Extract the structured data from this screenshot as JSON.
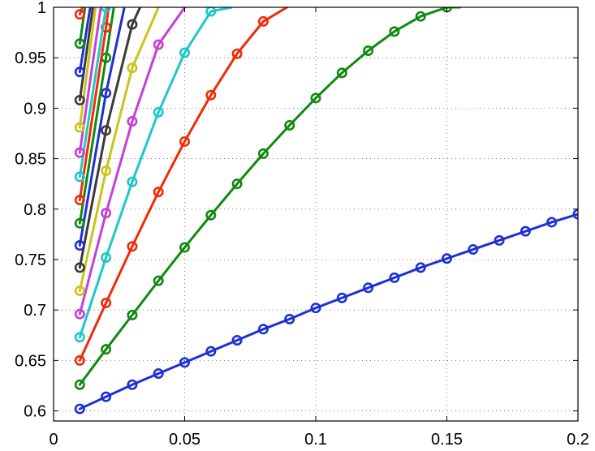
{
  "chart_data": {
    "type": "line",
    "title": "",
    "xlabel": "",
    "ylabel": "",
    "xlim": [
      0,
      0.2
    ],
    "ylim": [
      0.59,
      1.0
    ],
    "grid": true,
    "marker": "circle",
    "x_ticks": [
      "0",
      "0.05",
      "0.1",
      "0.15",
      "0.2"
    ],
    "y_ticks": [
      "0.6",
      "0.65",
      "0.7",
      "0.75",
      "0.8",
      "0.85",
      "0.9",
      "0.95",
      "1"
    ],
    "series": [
      {
        "color": "#1f2fd6",
        "points": [
          [
            0.01,
            0.602
          ],
          [
            0.02,
            0.614
          ],
          [
            0.03,
            0.626
          ],
          [
            0.04,
            0.637
          ],
          [
            0.05,
            0.648
          ],
          [
            0.06,
            0.659
          ],
          [
            0.07,
            0.67
          ],
          [
            0.08,
            0.681
          ],
          [
            0.09,
            0.691
          ],
          [
            0.1,
            0.702
          ],
          [
            0.11,
            0.712
          ],
          [
            0.12,
            0.722
          ],
          [
            0.13,
            0.732
          ],
          [
            0.14,
            0.742
          ],
          [
            0.15,
            0.751
          ],
          [
            0.16,
            0.76
          ],
          [
            0.17,
            0.769
          ],
          [
            0.18,
            0.778
          ],
          [
            0.19,
            0.787
          ],
          [
            0.2,
            0.795
          ]
        ]
      },
      {
        "color": "#0e8a0e",
        "points": [
          [
            0.01,
            0.626
          ],
          [
            0.02,
            0.661
          ],
          [
            0.03,
            0.695
          ],
          [
            0.04,
            0.729
          ],
          [
            0.05,
            0.762
          ],
          [
            0.06,
            0.794
          ],
          [
            0.07,
            0.825
          ],
          [
            0.08,
            0.855
          ],
          [
            0.09,
            0.883
          ],
          [
            0.1,
            0.91
          ],
          [
            0.11,
            0.935
          ],
          [
            0.12,
            0.957
          ],
          [
            0.13,
            0.976
          ],
          [
            0.14,
            0.991
          ],
          [
            0.15,
            1.0
          ],
          [
            0.155,
            1.0
          ]
        ]
      },
      {
        "color": "#f02b06",
        "points": [
          [
            0.01,
            0.65
          ],
          [
            0.02,
            0.707
          ],
          [
            0.03,
            0.763
          ],
          [
            0.04,
            0.817
          ],
          [
            0.05,
            0.867
          ],
          [
            0.06,
            0.913
          ],
          [
            0.07,
            0.954
          ],
          [
            0.08,
            0.986
          ],
          [
            0.089,
            1.0
          ]
        ]
      },
      {
        "color": "#1fc7c7",
        "points": [
          [
            0.01,
            0.673
          ],
          [
            0.02,
            0.752
          ],
          [
            0.03,
            0.827
          ],
          [
            0.04,
            0.896
          ],
          [
            0.05,
            0.955
          ],
          [
            0.06,
            0.996
          ],
          [
            0.068,
            1.0
          ]
        ]
      },
      {
        "color": "#c63fd6",
        "points": [
          [
            0.01,
            0.696
          ],
          [
            0.02,
            0.796
          ],
          [
            0.03,
            0.887
          ],
          [
            0.04,
            0.963
          ],
          [
            0.05,
            1.0
          ]
        ]
      },
      {
        "color": "#c9c41c",
        "points": [
          [
            0.01,
            0.719
          ],
          [
            0.02,
            0.838
          ],
          [
            0.03,
            0.94
          ],
          [
            0.04,
            1.0
          ]
        ]
      },
      {
        "color": "#3a3a3a",
        "points": [
          [
            0.01,
            0.742
          ],
          [
            0.02,
            0.878
          ],
          [
            0.03,
            0.983
          ],
          [
            0.033,
            1.0
          ]
        ]
      },
      {
        "color": "#1f2fd6",
        "points": [
          [
            0.01,
            0.764
          ],
          [
            0.02,
            0.915
          ],
          [
            0.027,
            1.0
          ]
        ]
      },
      {
        "color": "#0e8a0e",
        "points": [
          [
            0.01,
            0.786
          ],
          [
            0.02,
            0.95
          ],
          [
            0.023,
            1.0
          ]
        ]
      },
      {
        "color": "#f02b06",
        "points": [
          [
            0.01,
            0.809
          ],
          [
            0.02,
            0.98
          ],
          [
            0.021,
            1.0
          ]
        ]
      },
      {
        "color": "#1fc7c7",
        "points": [
          [
            0.01,
            0.832
          ],
          [
            0.02,
            1.0
          ]
        ]
      },
      {
        "color": "#c63fd6",
        "points": [
          [
            0.01,
            0.856
          ],
          [
            0.018,
            1.0
          ]
        ]
      },
      {
        "color": "#c9c41c",
        "points": [
          [
            0.01,
            0.881
          ],
          [
            0.016,
            1.0
          ]
        ]
      },
      {
        "color": "#3a3a3a",
        "points": [
          [
            0.01,
            0.908
          ],
          [
            0.015,
            1.0
          ]
        ]
      },
      {
        "color": "#1f2fd6",
        "points": [
          [
            0.01,
            0.936
          ],
          [
            0.014,
            1.0
          ]
        ]
      },
      {
        "color": "#0e8a0e",
        "points": [
          [
            0.01,
            0.964
          ],
          [
            0.012,
            1.0
          ]
        ]
      },
      {
        "color": "#f02b06",
        "points": [
          [
            0.01,
            0.993
          ],
          [
            0.011,
            1.0
          ]
        ]
      }
    ]
  }
}
